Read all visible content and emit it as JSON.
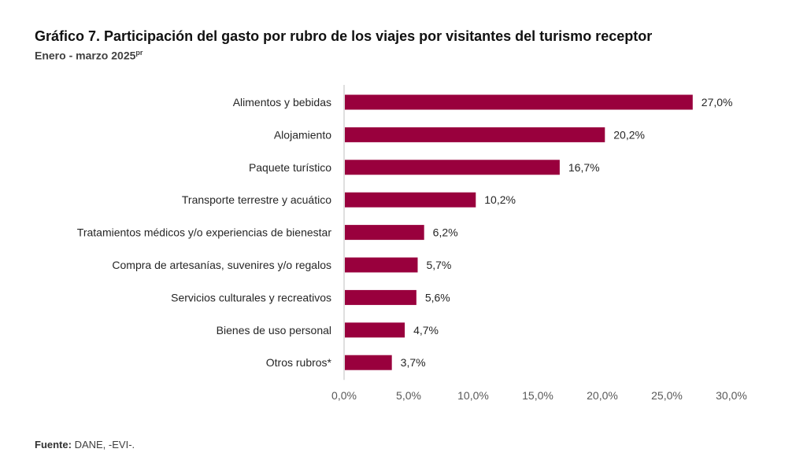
{
  "chart_data": {
    "type": "bar",
    "orientation": "horizontal",
    "title": "Gráfico 7. Participación del gasto por rubro de los viajes por visitantes del turismo receptor",
    "subtitle": "Enero - marzo 2025",
    "subtitle_sup": "pr",
    "categories": [
      "Alimentos y bebidas",
      "Alojamiento",
      "Paquete turístico",
      "Transporte terrestre y acuático",
      "Tratamientos médicos y/o experiencias de bienestar",
      "Compra de artesanías, suvenires y/o regalos",
      "Servicios culturales y recreativos",
      "Bienes de uso personal",
      "Otros rubros*"
    ],
    "values": [
      27.0,
      20.2,
      16.7,
      10.2,
      6.2,
      5.7,
      5.6,
      4.7,
      3.7
    ],
    "value_labels": [
      "27,0%",
      "20,2%",
      "16,7%",
      "10,2%",
      "6,2%",
      "5,7%",
      "5,6%",
      "4,7%",
      "3,7%"
    ],
    "xlim": [
      0,
      30
    ],
    "xticks": [
      0,
      5,
      10,
      15,
      20,
      25,
      30
    ],
    "xtick_labels": [
      "0,0%",
      "5,0%",
      "10,0%",
      "15,0%",
      "20,0%",
      "25,0%",
      "30,0%"
    ],
    "grid": false,
    "bar_color": "#99003d",
    "axis_color": "#bfbfbf"
  },
  "source": {
    "label": "Fuente:",
    "text": " DANE, -EVI-."
  }
}
